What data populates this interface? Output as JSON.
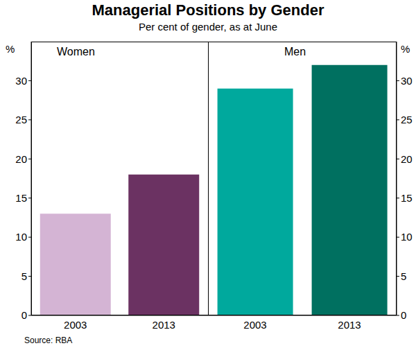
{
  "title": "Managerial Positions by Gender",
  "subtitle": "Per cent of gender, as at June",
  "source": "Source: RBA",
  "chart_data": [
    {
      "type": "bar",
      "title": "Women",
      "y_label": "%",
      "categories": [
        "2003",
        "2013"
      ],
      "values": [
        13,
        18
      ],
      "colors": [
        "#d4b4d4",
        "#6b3262"
      ],
      "ylim": [
        0,
        35
      ],
      "yticks": [
        0,
        5,
        10,
        15,
        20,
        25,
        30
      ],
      "grid": false
    },
    {
      "type": "bar",
      "title": "Men",
      "y_label": "%",
      "categories": [
        "2003",
        "2013"
      ],
      "values": [
        29,
        32
      ],
      "colors": [
        "#00a99d",
        "#007060"
      ],
      "ylim": [
        0,
        35
      ],
      "yticks": [
        0,
        5,
        10,
        15,
        20,
        25,
        30
      ],
      "grid": false
    }
  ]
}
